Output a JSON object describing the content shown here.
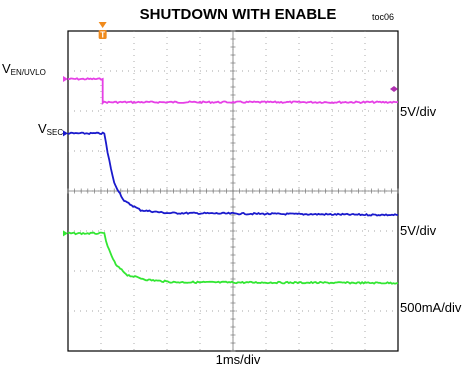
{
  "chart_data": {
    "type": "line",
    "title": "SHUTDOWN WITH ENABLE",
    "figure_id": "toc06",
    "xlabel": "1ms/div",
    "x_divisions": 10,
    "y_divisions": 8,
    "grid": true,
    "trigger_marker": "T",
    "series": [
      {
        "name_main": "V",
        "name_sub": "EN/UVLO",
        "color": "#e640e6",
        "scale": "5V/div",
        "points": [
          [
            0,
            1.2
          ],
          [
            1.05,
            1.2
          ],
          [
            1.05,
            1.78
          ],
          [
            10,
            1.78
          ]
        ]
      },
      {
        "name_main": "V",
        "name_sub": "SEC",
        "color": "#1a1acc",
        "scale": "5V/div",
        "points": [
          [
            0,
            2.56
          ],
          [
            1.1,
            2.56
          ],
          [
            1.2,
            3.05
          ],
          [
            1.4,
            3.8
          ],
          [
            1.7,
            4.25
          ],
          [
            2.2,
            4.48
          ],
          [
            3.0,
            4.55
          ],
          [
            10,
            4.6
          ]
        ]
      },
      {
        "name_main": "",
        "name_sub": "",
        "color": "#33e633",
        "scale": "500mA/div",
        "points": [
          [
            0,
            5.06
          ],
          [
            1.1,
            5.06
          ],
          [
            1.2,
            5.4
          ],
          [
            1.45,
            5.85
          ],
          [
            1.8,
            6.1
          ],
          [
            2.4,
            6.22
          ],
          [
            3.2,
            6.28
          ],
          [
            10,
            6.3
          ]
        ]
      }
    ]
  }
}
